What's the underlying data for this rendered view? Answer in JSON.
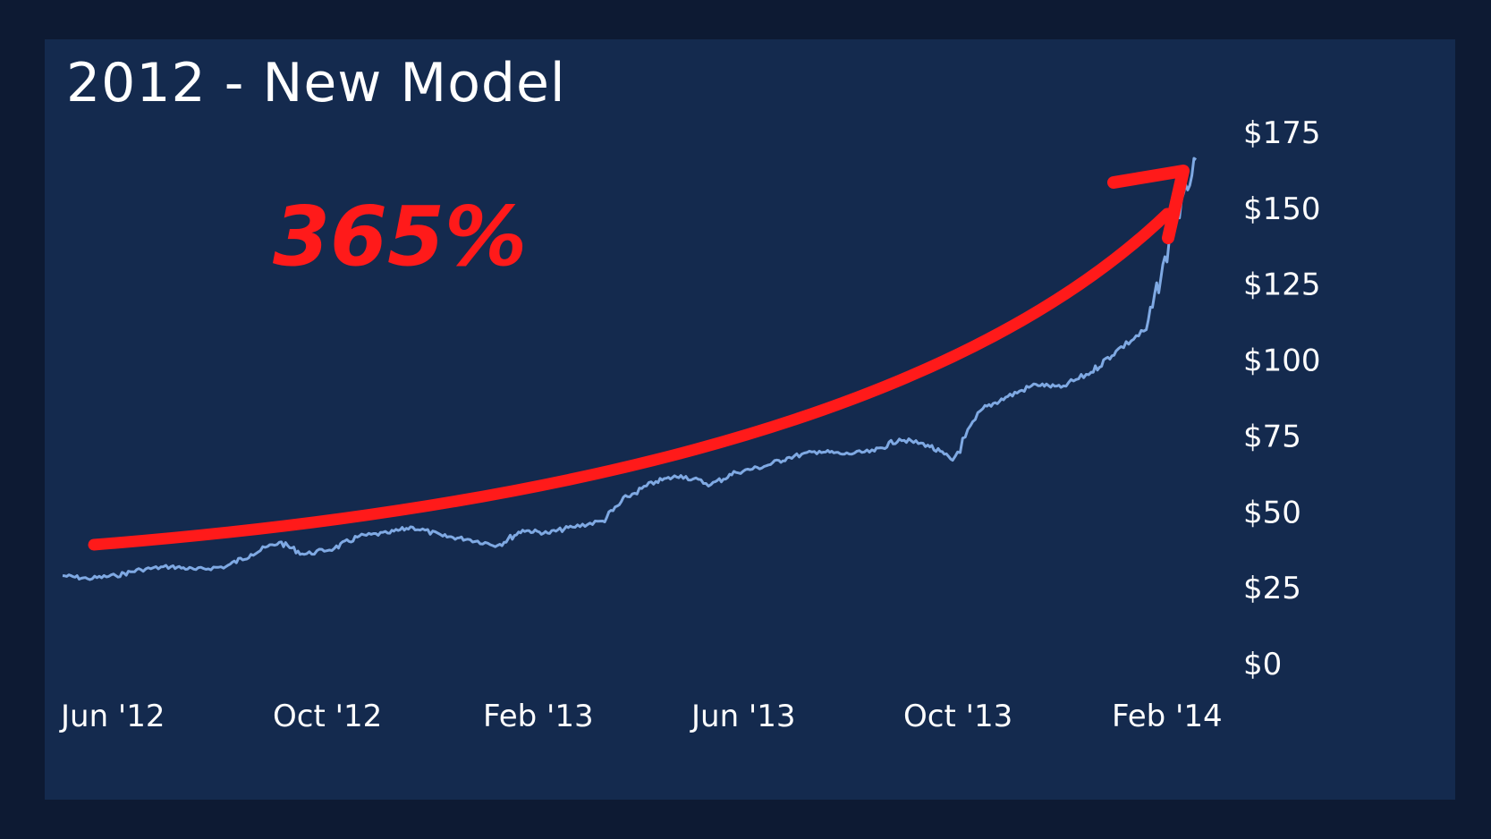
{
  "colors": {
    "background": "#0d1a33",
    "panel": "#142a4e",
    "line": "#7fa9e3",
    "text": "#ffffff",
    "annotation": "#ff1a1a"
  },
  "chart_data": {
    "type": "line",
    "title": "2012 - New Model",
    "xlabel": "",
    "ylabel": "",
    "grid": false,
    "legend": "none",
    "x_tick_labels": [
      "Jun '12",
      "Oct '12",
      "Feb '13",
      "Jun '13",
      "Oct '13",
      "Feb '14"
    ],
    "y_tick_labels": [
      "$175",
      "$150",
      "$125",
      "$100",
      "$75",
      "$50",
      "$25",
      "$0"
    ],
    "y_tick_values": [
      175,
      150,
      125,
      100,
      75,
      50,
      25,
      0
    ],
    "ylim": [
      0,
      175
    ],
    "xlim": [
      "2012-06-01",
      "2014-03-15"
    ],
    "series": [
      {
        "x": [
          "2012-06-01",
          "2012-06-15",
          "2012-07-01",
          "2012-07-15",
          "2012-08-01",
          "2012-08-15",
          "2012-09-01",
          "2012-09-15",
          "2012-10-01",
          "2012-10-15",
          "2012-11-01",
          "2012-11-15",
          "2012-12-01",
          "2012-12-15",
          "2013-01-01",
          "2013-01-15",
          "2013-02-01",
          "2013-02-15",
          "2013-03-01",
          "2013-03-15",
          "2013-04-01",
          "2013-04-15",
          "2013-05-01",
          "2013-05-15",
          "2013-06-01",
          "2013-06-15",
          "2013-07-01",
          "2013-07-15",
          "2013-08-01",
          "2013-08-15",
          "2013-09-01",
          "2013-09-15",
          "2013-10-01",
          "2013-10-15",
          "2013-11-01",
          "2013-11-15",
          "2013-12-01",
          "2013-12-15",
          "2014-01-01",
          "2014-01-15",
          "2014-02-01",
          "2014-02-15",
          "2014-03-01"
        ],
        "values": [
          29,
          28,
          29,
          31,
          32,
          31,
          32,
          36,
          40,
          36,
          38,
          42,
          43,
          45,
          42,
          41,
          39,
          44,
          43,
          45,
          47,
          55,
          60,
          62,
          59,
          63,
          65,
          68,
          70,
          69,
          70,
          74,
          72,
          67,
          84,
          88,
          92,
          91,
          96,
          103,
          110,
          140,
          166
        ]
      }
    ],
    "annotations": [
      {
        "text": "365%",
        "type": "trend-arrow"
      }
    ]
  }
}
